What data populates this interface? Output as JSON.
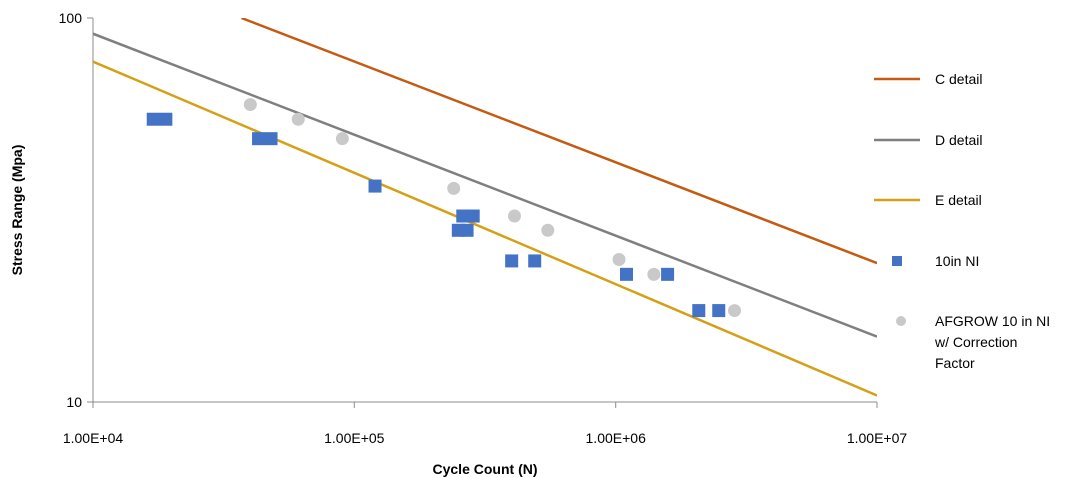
{
  "chart_data": {
    "type": "scatter",
    "title": "",
    "xlabel": "Cycle Count (N)",
    "ylabel": "Stress Range (Mpa)",
    "x_scale": "log",
    "y_scale": "log",
    "xlim": [
      10000,
      10000000
    ],
    "ylim": [
      10,
      100
    ],
    "x_tick_labels": [
      "1.00E+04",
      "1.00E+05",
      "1.00E+06",
      "1.00E+07"
    ],
    "y_tick_labels": [
      "10",
      "100"
    ],
    "grid": false,
    "legend_position": "right",
    "series": [
      {
        "name": "C detail",
        "kind": "line",
        "color": "#C55A11",
        "points": [
          [
            37000,
            100
          ],
          [
            10000000,
            23.0
          ]
        ]
      },
      {
        "name": "D detail",
        "kind": "line",
        "color": "#7F7F7F",
        "points": [
          [
            10000,
            91
          ],
          [
            10000000,
            14.8
          ]
        ]
      },
      {
        "name": "E detail",
        "kind": "line",
        "color": "#D4A017",
        "points": [
          [
            10000,
            77
          ],
          [
            10000000,
            10.4
          ]
        ]
      },
      {
        "name": "10in NI",
        "kind": "scatter",
        "marker": "square",
        "color": "#4472C4",
        "points": [
          [
            17000,
            54.5
          ],
          [
            19000,
            54.5
          ],
          [
            43000,
            48.5
          ],
          [
            48000,
            48.5
          ],
          [
            120000,
            36.5
          ],
          [
            250000,
            28.0
          ],
          [
            270000,
            28.0
          ],
          [
            260000,
            30.5
          ],
          [
            285000,
            30.5
          ],
          [
            400000,
            23.3
          ],
          [
            490000,
            23.3
          ],
          [
            1100000,
            21.5
          ],
          [
            1580000,
            21.5
          ],
          [
            2080000,
            17.3
          ],
          [
            2480000,
            17.3
          ]
        ]
      },
      {
        "name": "AFGROW 10 in NI w/ Correction Factor",
        "kind": "scatter",
        "marker": "circle",
        "color": "#C9C9C9",
        "points": [
          [
            40000,
            59.5
          ],
          [
            61000,
            54.5
          ],
          [
            90000,
            48.5
          ],
          [
            240000,
            36.0
          ],
          [
            410000,
            30.5
          ],
          [
            550000,
            28.0
          ],
          [
            1030000,
            23.5
          ],
          [
            1400000,
            21.5
          ],
          [
            2850000,
            17.3
          ]
        ]
      }
    ],
    "legend": [
      {
        "label": "C detail"
      },
      {
        "label": "D detail"
      },
      {
        "label": "E detail"
      },
      {
        "label": "10in NI"
      },
      {
        "label_lines": [
          "AFGROW 10 in NI",
          "w/ Correction",
          "Factor"
        ]
      }
    ]
  }
}
